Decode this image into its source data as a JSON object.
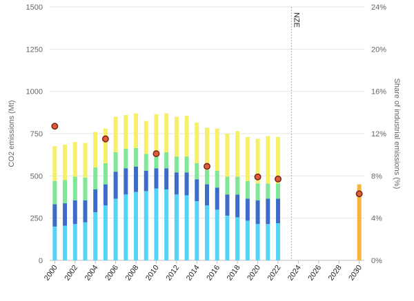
{
  "chart_data": {
    "type": "bar",
    "stacked": true,
    "x": [
      2000,
      2001,
      2002,
      2003,
      2004,
      2005,
      2006,
      2007,
      2008,
      2009,
      2010,
      2011,
      2012,
      2013,
      2014,
      2015,
      2016,
      2017,
      2018,
      2019,
      2020,
      2021,
      2022,
      2030
    ],
    "x_tick_labels": [
      "2000",
      "2002",
      "2004",
      "2006",
      "2008",
      "2010",
      "2012",
      "2014",
      "2016",
      "2018",
      "2020",
      "2022",
      "2024",
      "2026",
      "2028",
      "2030"
    ],
    "x_tick_values": [
      2000,
      2002,
      2004,
      2006,
      2008,
      2010,
      2012,
      2014,
      2016,
      2018,
      2020,
      2022,
      2024,
      2026,
      2028,
      2030
    ],
    "xlim": [
      1999.5,
      2030.5
    ],
    "ylim": [
      0,
      1500
    ],
    "y_tick_labels": [
      "0",
      "250",
      "500",
      "750",
      "1000",
      "1250",
      "1500"
    ],
    "y_tick_values": [
      0,
      250,
      500,
      750,
      1000,
      1250,
      1500
    ],
    "ylabel": "CO2 emissions (Mt)",
    "y2label": "Share of industrial emissions (%)",
    "y2lim": [
      0,
      24
    ],
    "y2_tick_labels": [
      "0%",
      "4%",
      "8%",
      "12%",
      "16%",
      "20%",
      "24%"
    ],
    "y2_tick_values": [
      0,
      4,
      8,
      12,
      16,
      20,
      24
    ],
    "grid": true,
    "series": [
      {
        "color": "#55d3f8",
        "values": [
          200,
          205,
          215,
          225,
          285,
          325,
          365,
          390,
          405,
          410,
          425,
          420,
          390,
          385,
          350,
          325,
          300,
          265,
          255,
          235,
          215,
          215,
          220,
          null
        ]
      },
      {
        "color": "#3d6cc8",
        "values": [
          132,
          133,
          140,
          130,
          135,
          125,
          160,
          155,
          150,
          120,
          120,
          125,
          130,
          135,
          130,
          125,
          130,
          125,
          135,
          130,
          140,
          150,
          145,
          null
        ]
      },
      {
        "color": "#7ee897",
        "values": [
          138,
          137,
          140,
          135,
          130,
          125,
          115,
          115,
          110,
          100,
          95,
          95,
          95,
          95,
          95,
          85,
          100,
          105,
          105,
          105,
          100,
          90,
          90,
          null
        ]
      },
      {
        "color": "#f6ef6a",
        "values": [
          205,
          210,
          205,
          205,
          210,
          205,
          210,
          200,
          205,
          195,
          225,
          230,
          235,
          240,
          240,
          250,
          250,
          255,
          270,
          260,
          265,
          280,
          275,
          null
        ]
      },
      {
        "color": "#f9b43d",
        "values": [
          null,
          null,
          null,
          null,
          null,
          null,
          null,
          null,
          null,
          null,
          null,
          null,
          null,
          null,
          null,
          null,
          null,
          null,
          null,
          null,
          null,
          null,
          null,
          450
        ]
      }
    ],
    "share_points": {
      "x": [
        2000,
        2005,
        2010,
        2015,
        2020,
        2022,
        2030
      ],
      "values": [
        12.7,
        11.5,
        10.1,
        8.9,
        7.9,
        7.7,
        6.3
      ],
      "fill": "#e05a3c",
      "stroke": "#7a2a1a"
    },
    "reference_line": {
      "x": 2024,
      "label": "NZE"
    }
  }
}
